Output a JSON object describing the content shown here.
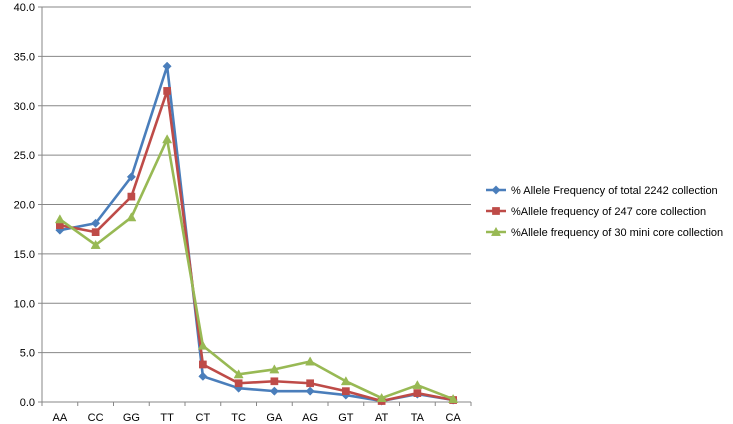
{
  "chart_data": {
    "type": "line",
    "categories": [
      "AA",
      "CC",
      "GG",
      "TT",
      "CT",
      "TC",
      "GA",
      "AG",
      "GT",
      "AT",
      "TA",
      "CA"
    ],
    "ylim": [
      0,
      40
    ],
    "yticks": [
      "0.0",
      "5.0",
      "10.0",
      "15.0",
      "20.0",
      "25.0",
      "30.0",
      "35.0",
      "40.0"
    ],
    "grid": "horizontal",
    "legend_position": "right",
    "series": [
      {
        "name": "% Allele Frequency of total 2242 collection",
        "color": "#4a7ebb",
        "marker": "diamond",
        "values": [
          17.4,
          18.1,
          22.8,
          34.0,
          2.6,
          1.4,
          1.1,
          1.1,
          0.7,
          0.1,
          0.8,
          0.2
        ]
      },
      {
        "name": "%Allele frequency of 247 core collection",
        "color": "#be4b48",
        "marker": "square",
        "values": [
          17.9,
          17.2,
          20.8,
          31.5,
          3.8,
          1.9,
          2.1,
          1.9,
          1.1,
          0.1,
          0.9,
          0.2
        ]
      },
      {
        "name": "%Allele frequency of 30 mini core collection",
        "color": "#98b954",
        "marker": "triangle",
        "values": [
          18.5,
          15.9,
          18.7,
          26.6,
          5.7,
          2.8,
          3.3,
          4.1,
          2.1,
          0.4,
          1.7,
          0.3
        ]
      }
    ]
  }
}
